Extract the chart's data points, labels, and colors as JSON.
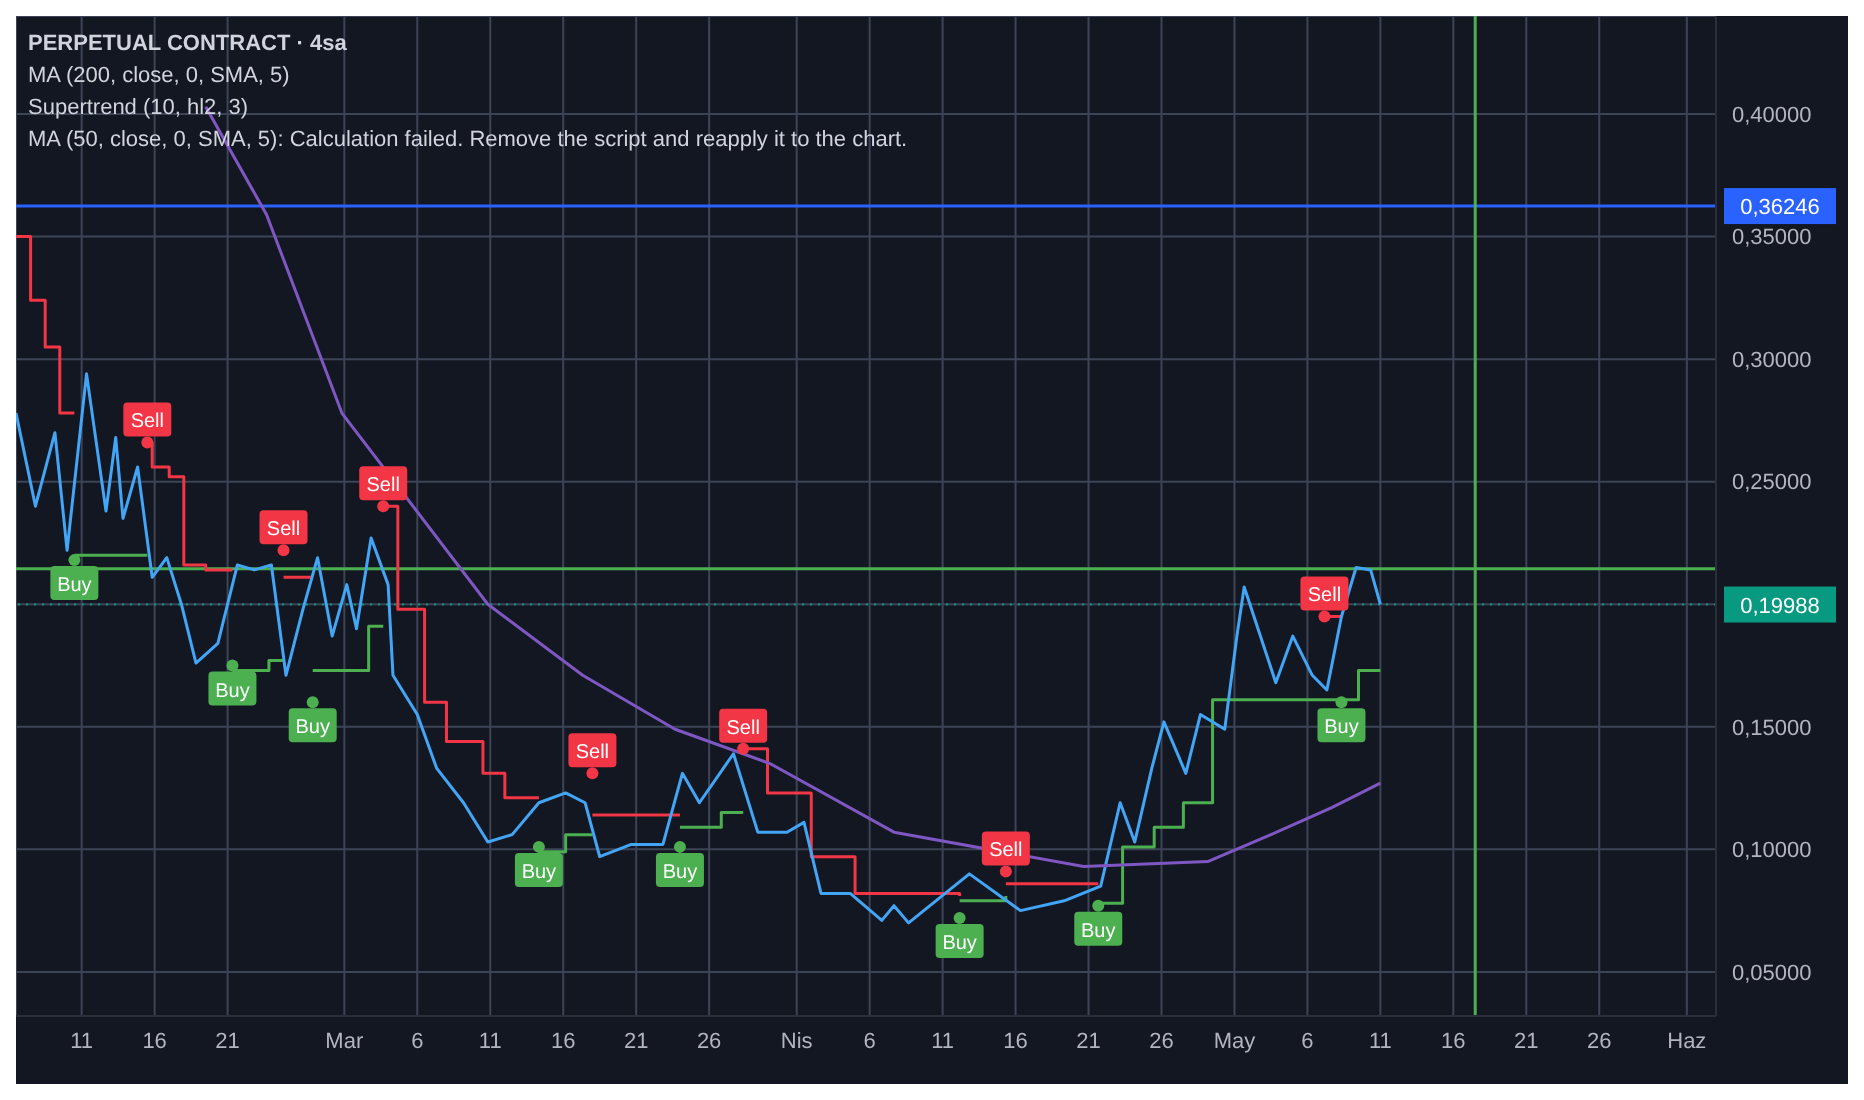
{
  "chart_data": {
    "type": "line",
    "title": "PERPETUAL CONTRACT · 4sa",
    "annotations": [
      "MA (200, close, 0, SMA, 5)",
      "Supertrend (10, hl2, 3)",
      "MA (50, close, 0, SMA, 5): Calculation failed. Remove the script and reapply it to the chart."
    ],
    "series": [
      {
        "type": "step",
        "color": "#f23645",
        "x": [
          "--02-06T12:00",
          "--02-07T12:00",
          "--02-08T12:00",
          "--02-09T12:00",
          "--02-10T12:00",
          "--02-13T00:00",
          "--02-15T12:00",
          "--02-15T20:00",
          "--02-17T00:00",
          "--02-18T00:00",
          "--02-19T12:00",
          "--02-21T08:00",
          "--02-23T00:00",
          "--02-24T20:00",
          "--02-26T20:00",
          "--03-01T00:00",
          "--03-03T16:00",
          "--03-04T16:00",
          "--03-06T12:00",
          "--03-08T00:00",
          "--03-10T12:00",
          "--03-12T00:00",
          "--03-14T08:00",
          "--03-16T00:00",
          "--03-18T00:00",
          "--03-24T00:00",
          "--03-26T00:00",
          "--03-28T08:00",
          "--03-30T00:00",
          "--04-02T00:00",
          "--04-05T00:00",
          "--04-12T04:00",
          "--04-13T20:00",
          "--04-15T08:00",
          "--04-21T16:00",
          "--04-30T00:00",
          "--05-07T04:00",
          "--05-08T08:00"
        ],
        "values": [
          0.35,
          0.324,
          0.305,
          0.278,
          0.278,
          null,
          0.266,
          0.256,
          0.252,
          0.216,
          0.214,
          0.214,
          null,
          0.211,
          0.211,
          null,
          0.24,
          0.198,
          0.16,
          0.144,
          0.131,
          0.121,
          0.121,
          null,
          0.114,
          0.114,
          null,
          0.141,
          0.123,
          0.097,
          0.082,
          0.081,
          null,
          0.086,
          0.086,
          null,
          0.195,
          0.195
        ]
      },
      {
        "type": "step",
        "color": "#4caf50",
        "x": [
          "--02-10T12:00",
          "--02-15T12:00",
          "--02-18T00:00",
          "--02-21T08:00",
          "--02-23T20:00",
          "--02-24T20:00",
          "--02-25T20:00",
          "--02-26T20:00",
          "--03-02T16:00",
          "--03-03T16:00",
          "--03-09T00:00",
          "--03-14T08:00",
          "--03-16T04:00",
          "--03-18T00:00",
          "--03-20T00:00",
          "--03-24T00:00",
          "--03-26T20:00",
          "--03-28T08:00",
          "--04-09T00:00",
          "--04-12T04:00",
          "--04-15T08:00",
          "--04-18T00:00",
          "--04-21T16:00",
          "--04-23T08:00",
          "--04-25T12:00",
          "--04-27T12:00",
          "--04-29T12:00",
          "--05-01T00:00",
          "--05-07T04:00",
          "--05-08T08:00",
          "--05-09T12:00",
          "--05-11T00:00"
        ],
        "values": [
          0.22,
          0.22,
          null,
          0.173,
          0.177,
          0.177,
          null,
          0.173,
          0.191,
          0.191,
          null,
          0.099,
          0.106,
          0.106,
          null,
          0.109,
          0.115,
          0.115,
          null,
          0.079,
          0.081,
          null,
          0.078,
          0.101,
          0.109,
          0.119,
          0.161,
          0.161,
          0.161,
          0.161,
          0.173,
          0.173
        ]
      },
      {
        "color": "#42a5f5",
        "x": [
          "--02-06T12:00",
          "--02-07T20:00",
          "--02-09T04:00",
          "--02-10T00:00",
          "--02-11T08:00",
          "--02-12T16:00",
          "--02-13T08:00",
          "--02-13T20:00",
          "--02-14T20:00",
          "--02-15T20:00",
          "--02-16T20:00",
          "--02-17T20:00",
          "--02-18T20:00",
          "--02-20T08:00",
          "--02-21T16:00",
          "--02-22T20:00",
          "--02-24T00:00",
          "--02-25T00:00",
          "--02-26T04:00",
          "--02-27T04:00",
          "--02-28T04:00",
          "--03-01T04:00",
          "--03-01T20:00",
          "--03-02T20:00",
          "--03-04T00:00",
          "--03-04T08:00",
          "--03-06T00:00",
          "--03-07T08:00",
          "--03-09T04:00",
          "--03-10T20:00",
          "--03-12T12:00",
          "--03-14T08:00",
          "--03-16T04:00",
          "--03-17T12:00",
          "--03-18T12:00",
          "--03-20T16:00",
          "--03-22T20:00",
          "--03-24T04:00",
          "--03-25T08:00",
          "--03-27T16:00",
          "--03-29T08:00",
          "--03-31T08:00",
          "--04-01T12:00",
          "--04-02T16:00",
          "--04-04T16:00",
          "--04-06T20:00",
          "--04-07T16:00",
          "--04-08T16:00",
          "--04-12T20:00",
          "--04-16T08:00",
          "--04-19T08:00",
          "--04-21T20:00",
          "--04-23T04:00",
          "--04-24T04:00",
          "--04-25T08:00",
          "--04-26T04:00",
          "--04-27T16:00",
          "--04-28T16:00",
          "--04-30T08:00",
          "--05-01T04:00",
          "--05-01T16:00",
          "--05-02T12:00",
          "--05-03T20:00",
          "--05-05T00:00",
          "--05-06T08:00",
          "--05-07T08:00",
          "--05-08T08:00",
          "--05-09T08:00",
          "--05-10T08:00",
          "--05-11T00:00"
        ],
        "values": [
          0.278,
          0.24,
          0.27,
          0.222,
          0.294,
          0.238,
          0.268,
          0.235,
          0.256,
          0.211,
          0.219,
          0.2,
          0.176,
          0.184,
          0.216,
          0.214,
          0.216,
          0.171,
          0.198,
          0.219,
          0.187,
          0.208,
          0.19,
          0.227,
          0.208,
          0.171,
          0.155,
          0.133,
          0.119,
          0.103,
          0.106,
          0.119,
          0.123,
          0.119,
          0.097,
          0.102,
          0.102,
          0.131,
          0.119,
          0.139,
          0.107,
          0.107,
          0.111,
          0.082,
          0.082,
          0.071,
          0.077,
          0.07,
          0.09,
          0.075,
          0.079,
          0.085,
          0.119,
          0.103,
          0.133,
          0.152,
          0.131,
          0.155,
          0.149,
          0.187,
          0.207,
          0.192,
          0.168,
          0.187,
          0.171,
          0.165,
          0.195,
          0.215,
          0.214,
          0.2
        ]
      },
      {
        "color": "#7e57c2",
        "x": [
          "--02-19T12:00",
          "--02-23T16:00",
          "--02-28T20:00",
          "--03-10T20:00",
          "--03-17T08:00",
          "--03-23T16:00",
          "--03-30T04:00",
          "--04-07T16:00",
          "--04-20T16:00",
          "--04-29T04:00",
          "--05-03T12:00",
          "--05-07T16:00",
          "--05-11T00:00"
        ],
        "values": [
          0.403,
          0.359,
          0.278,
          0.2,
          0.171,
          0.149,
          0.135,
          0.107,
          0.093,
          0.095,
          0.106,
          0.117,
          0.127
        ]
      },
      {
        "type": "scatter",
        "name": "Buy",
        "color": "#4caf50",
        "x": [
          "--02-10T12:00",
          "--02-21T08:00",
          "--02-26T20:00",
          "--03-14T08:00",
          "--03-24T00:00",
          "--04-12T04:00",
          "--04-21T16:00",
          "--05-08T08:00"
        ],
        "values": [
          0.218,
          0.175,
          0.16,
          0.101,
          0.101,
          0.072,
          0.077,
          0.16
        ]
      },
      {
        "type": "scatter",
        "name": "Sell",
        "color": "#f23645",
        "x": [
          "--02-15T12:00",
          "--02-24T20:00",
          "--03-03T16:00",
          "--03-18T00:00",
          "--03-28T08:00",
          "--04-15T08:00",
          "--05-07T04:00"
        ],
        "values": [
          0.266,
          0.222,
          0.24,
          0.131,
          0.141,
          0.091,
          0.195
        ]
      }
    ],
    "xlim": [
      "--02-06T12:00",
      "--06-03T00:00"
    ],
    "xticks": [
      {
        "value": "--02-11",
        "label": "11"
      },
      {
        "value": "--02-16",
        "label": "16"
      },
      {
        "value": "--02-21",
        "label": "21"
      },
      {
        "value": "--03-01",
        "label": "Mar"
      },
      {
        "value": "--03-06",
        "label": "6"
      },
      {
        "value": "--03-11",
        "label": "11"
      },
      {
        "value": "--03-16",
        "label": "16"
      },
      {
        "value": "--03-21",
        "label": "21"
      },
      {
        "value": "--03-26",
        "label": "26"
      },
      {
        "value": "--04-01",
        "label": "Nis"
      },
      {
        "value": "--04-06",
        "label": "6"
      },
      {
        "value": "--04-11",
        "label": "11"
      },
      {
        "value": "--04-16",
        "label": "16"
      },
      {
        "value": "--04-21",
        "label": "21"
      },
      {
        "value": "--04-26",
        "label": "26"
      },
      {
        "value": "--05-01",
        "label": "May"
      },
      {
        "value": "--05-06",
        "label": "6"
      },
      {
        "value": "--05-11",
        "label": "11"
      },
      {
        "value": "--05-16",
        "label": "16"
      },
      {
        "value": "--05-21",
        "label": "21"
      },
      {
        "value": "--05-26",
        "label": "26"
      },
      {
        "value": "--06-01",
        "label": "Haz"
      }
    ],
    "ylim": [
      0.032,
      0.44
    ],
    "yticks": [
      {
        "value": 0.05,
        "label": "0,05000"
      },
      {
        "value": 0.1,
        "label": "0,10000"
      },
      {
        "value": 0.15,
        "label": "0,15000"
      },
      {
        "value": 0.2,
        "label": null
      },
      {
        "value": 0.25,
        "label": "0,25000"
      },
      {
        "value": 0.3,
        "label": "0,30000"
      },
      {
        "value": 0.35,
        "label": "0,35000"
      },
      {
        "value": 0.4,
        "label": "0,40000"
      }
    ],
    "ref_lines": [
      {
        "axis": "y",
        "value": 0.36246,
        "label": "0,36246",
        "color": "#2962ff"
      },
      {
        "axis": "y",
        "value": 0.19988,
        "label": "0,19988",
        "color": "#089981",
        "line_style": "dotted"
      },
      {
        "axis": "y",
        "value": 0.2145,
        "color": "#4caf50"
      },
      {
        "axis": "x",
        "value": "--05-17T12:00",
        "color": "#4caf50"
      }
    ],
    "grid": true
  }
}
